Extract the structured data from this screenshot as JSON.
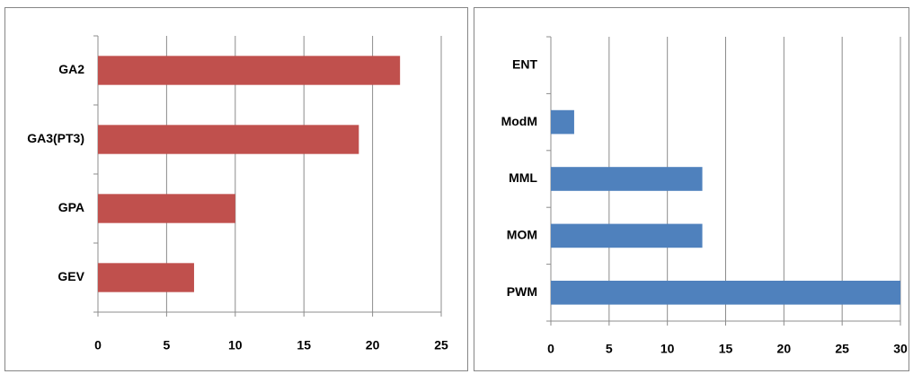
{
  "chart_data": [
    {
      "type": "bar",
      "categories": [
        "GA2",
        "GA3(PT3)",
        "GPA",
        "GEV"
      ],
      "values": [
        22,
        19,
        10,
        7
      ],
      "color": "#c0504d",
      "xlim": [
        0,
        25
      ],
      "xticks": [
        0,
        5,
        10,
        15,
        20,
        25
      ],
      "grid": true
    },
    {
      "type": "bar",
      "categories": [
        "ENT",
        "ModM",
        "MML",
        "MOM",
        "PWM"
      ],
      "values": [
        0,
        2,
        13,
        13,
        30
      ],
      "color": "#4f81bd",
      "xlim": [
        0,
        30
      ],
      "xticks": [
        0,
        5,
        10,
        15,
        20,
        25,
        30
      ],
      "grid": true
    }
  ]
}
